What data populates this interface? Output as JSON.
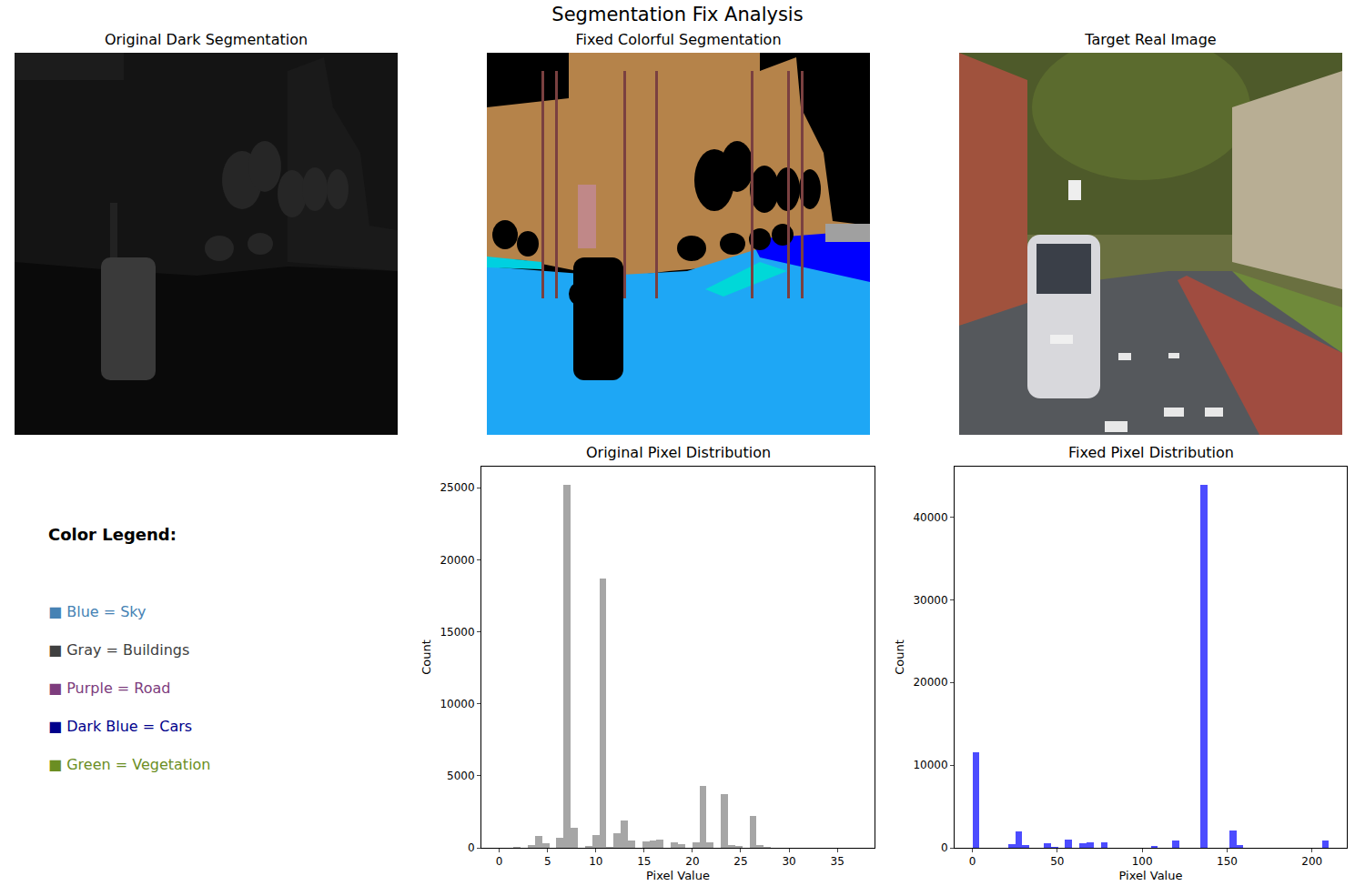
{
  "title": "Segmentation Fix Analysis",
  "chart_data": [
    {
      "type": "image",
      "title": "Original Dark Segmentation"
    },
    {
      "type": "image",
      "title": "Fixed Colorful Segmentation"
    },
    {
      "type": "image",
      "title": "Target Real Image"
    },
    {
      "type": "text",
      "title": "Color Legend:",
      "items": [
        {
          "text": "■ Blue = Sky",
          "color": "#4682b4"
        },
        {
          "text": "■ Gray = Buildings",
          "color": "#404040"
        },
        {
          "text": "■ Purple = Road",
          "color": "#7d3c7d"
        },
        {
          "text": "■ Dark Blue = Cars",
          "color": "#00008b"
        },
        {
          "text": "■ Green = Vegetation",
          "color": "#6b8e23"
        }
      ]
    },
    {
      "type": "histogram",
      "title": "Original Pixel Distribution",
      "x_label": "Pixel Value",
      "y_label": "Count",
      "color": "gray",
      "bins": [
        0,
        0.74,
        1.48,
        2.22,
        2.96,
        3.7,
        4.44,
        5.18,
        5.92,
        6.66,
        7.4,
        8.14,
        8.88,
        9.62,
        10.36,
        11.1,
        11.84,
        12.58,
        13.32,
        14.06,
        14.8,
        15.54,
        16.28,
        17.02,
        17.76,
        18.5,
        19.24,
        19.98,
        20.72,
        21.46,
        22.2,
        22.94,
        23.68,
        24.42,
        25.16,
        25.9,
        26.64,
        27.38,
        28.12,
        28.86,
        29.6,
        30.34,
        31.08,
        31.82,
        32.56,
        33.3,
        34.04,
        34.78,
        35.52,
        36.26,
        37.0
      ],
      "counts": [
        0,
        0,
        50,
        0,
        200,
        800,
        300,
        0,
        700,
        25200,
        1400,
        0,
        150,
        900,
        18700,
        50,
        1000,
        1900,
        500,
        0,
        450,
        500,
        600,
        0,
        400,
        250,
        0,
        350,
        4300,
        400,
        0,
        3700,
        200,
        150,
        0,
        2200,
        200,
        50,
        0,
        0,
        0,
        0,
        0,
        0,
        0,
        0,
        0,
        0,
        0,
        0
      ],
      "xlim": [
        -1.85,
        38.85
      ],
      "ylim": [
        0,
        26460
      ],
      "xticks": [
        0,
        5,
        10,
        15,
        20,
        25,
        30,
        35
      ],
      "yticks": [
        0,
        5000,
        10000,
        15000,
        20000,
        25000
      ]
    },
    {
      "type": "histogram",
      "title": "Fixed Pixel Distribution",
      "x_label": "Pixel Value",
      "y_label": "Count",
      "color": "blue",
      "bins": [
        0,
        4.2,
        8.4,
        12.6,
        16.8,
        21,
        25.2,
        29.4,
        33.6,
        37.8,
        42,
        46.2,
        50.4,
        54.6,
        58.8,
        63,
        67.2,
        71.4,
        75.6,
        79.8,
        84,
        88.2,
        92.4,
        96.6,
        100.8,
        105,
        109.2,
        113.4,
        117.6,
        121.8,
        126,
        130.2,
        134.4,
        138.6,
        142.8,
        147,
        151.2,
        155.4,
        159.6,
        163.8,
        168,
        172.2,
        176.4,
        180.6,
        184.8,
        189,
        193.2,
        197.4,
        201.6,
        205.8,
        210
      ],
      "counts": [
        11600,
        0,
        0,
        0,
        0,
        400,
        2000,
        300,
        0,
        0,
        500,
        100,
        0,
        1000,
        0,
        500,
        700,
        0,
        700,
        0,
        0,
        0,
        0,
        0,
        0,
        200,
        0,
        0,
        900,
        0,
        0,
        0,
        43900,
        0,
        0,
        0,
        2100,
        300,
        0,
        0,
        0,
        0,
        0,
        0,
        0,
        0,
        0,
        0,
        0,
        900
      ],
      "xlim": [
        -10.5,
        220.5
      ],
      "ylim": [
        0,
        46095
      ],
      "xticks": [
        0,
        50,
        100,
        150,
        200
      ],
      "yticks": [
        0,
        10000,
        20000,
        30000,
        40000
      ]
    }
  ]
}
